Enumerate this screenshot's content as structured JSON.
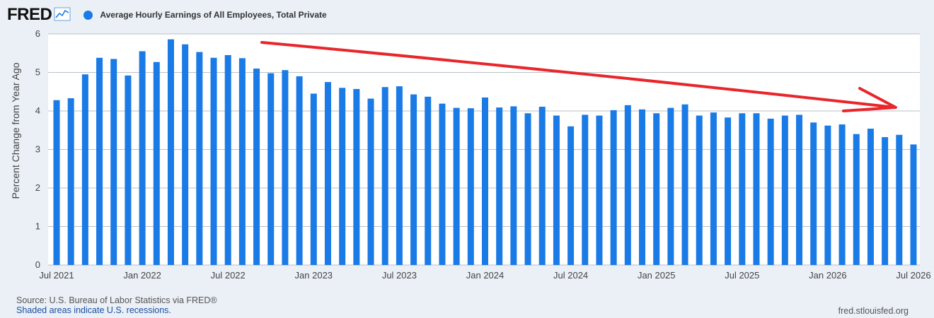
{
  "header": {
    "logo": "FRED",
    "series_label": "Average Hourly Earnings of All Employees, Total Private"
  },
  "colors": {
    "bar": "#1a7ae6",
    "annotation_arrow": "#e8262b",
    "plot_bg": "#ffffff",
    "grid": "#b9c1c9"
  },
  "footer": {
    "source": "Source: U.S. Bureau of Labor Statistics via FRED®",
    "recessions": "Shaded areas indicate U.S. recessions.",
    "site": "fred.stlouisfed.org"
  },
  "chart_data": {
    "type": "bar",
    "ylabel": "Percent Change from Year Ago",
    "ylim": [
      0,
      6
    ],
    "yticks": [
      0,
      1,
      2,
      3,
      4,
      5,
      6
    ],
    "grid": true,
    "legend_position": "top-left",
    "xtick_labels": [
      "Jul 2021",
      "Jan 2022",
      "Jul 2022",
      "Jan 2023",
      "Jul 2023",
      "Jan 2024",
      "Jul 2024",
      "Jan 2025",
      "Jul 2025",
      "Jan 2026",
      "Jul 2026"
    ],
    "xtick_index": [
      0,
      6,
      12,
      18,
      24,
      30,
      36,
      42,
      48,
      54,
      60
    ],
    "series": [
      {
        "name": "Average Hourly Earnings of All Employees, Total Private",
        "values": [
          4.28,
          4.33,
          4.95,
          5.38,
          5.35,
          4.92,
          5.55,
          5.27,
          5.86,
          5.73,
          5.53,
          5.38,
          5.45,
          5.37,
          5.1,
          4.98,
          5.06,
          4.9,
          4.45,
          4.75,
          4.6,
          4.57,
          4.32,
          4.62,
          4.64,
          4.43,
          4.37,
          4.19,
          4.08,
          4.07,
          4.35,
          4.09,
          4.12,
          3.94,
          4.11,
          3.88,
          3.6,
          3.9,
          3.88,
          4.02,
          4.15,
          4.04,
          3.94,
          4.08,
          4.17,
          3.88,
          3.96,
          3.83,
          3.94,
          3.94,
          3.8,
          3.88,
          3.9,
          3.7,
          3.62,
          3.65,
          3.4,
          3.54,
          3.32,
          3.38,
          3.13
        ]
      }
    ],
    "annotation": "red hand-drawn arrow pointing down-right indicating a declining trend"
  }
}
